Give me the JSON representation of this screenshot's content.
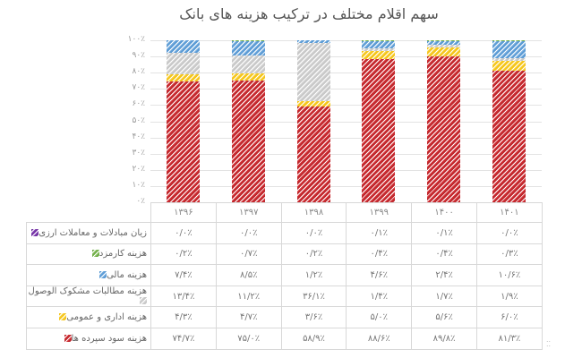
{
  "chart_data": {
    "type": "bar",
    "stacked": true,
    "percent_stacked": true,
    "title": "سهم اقلام مختلف در ترکیب هزینه های بانک",
    "xlabel": "",
    "ylabel": "",
    "ylim": [
      0,
      100
    ],
    "grid": true,
    "legend_position": "data-table",
    "y_ticks": [
      "۰٪",
      "۱۰٪",
      "۲۰٪",
      "۳۰٪",
      "۴۰٪",
      "۵۰٪",
      "۶۰٪",
      "۷۰٪",
      "۸۰٪",
      "۹۰٪",
      "۱۰۰٪"
    ],
    "categories": [
      "۱۳۹۶",
      "۱۳۹۷",
      "۱۳۹۸",
      "۱۳۹۹",
      "۱۴۰۰",
      "۱۴۰۱"
    ],
    "series": [
      {
        "name": "هزینه سود سپرده ها",
        "color": "#c0282d",
        "pattern": "p-red",
        "values": [
          74.7,
          75.0,
          58.9,
          88.6,
          89.8,
          81.3
        ],
        "labels": [
          "۷۴/۷٪",
          "۷۵/۰٪",
          "۵۸/۹٪",
          "۸۸/۶٪",
          "۸۹/۸٪",
          "۸۱/۳٪"
        ]
      },
      {
        "name": "هزینه اداری و عمومی",
        "color": "#f5c518",
        "pattern": "p-yellow",
        "values": [
          4.3,
          4.7,
          3.6,
          5.0,
          5.6,
          6.0
        ],
        "labels": [
          "۴/۳٪",
          "۴/۷٪",
          "۳/۶٪",
          "۵/۰٪",
          "۵/۶٪",
          "۶/۰٪"
        ]
      },
      {
        "name": "هزینه مطالبات مشکوک الوصول",
        "color": "#c8c8c8",
        "pattern": "p-grey",
        "values": [
          13.4,
          11.2,
          36.1,
          1.4,
          1.7,
          1.9
        ],
        "labels": [
          "۱۳/۴٪",
          "۱۱/۲٪",
          "۳۶/۱٪",
          "۱/۴٪",
          "۱/۷٪",
          "۱/۹٪"
        ]
      },
      {
        "name": "هزینه مالی",
        "color": "#5b9bd5",
        "pattern": "p-blue",
        "values": [
          7.4,
          8.5,
          1.2,
          4.6,
          2.4,
          10.6
        ],
        "labels": [
          "۷/۴٪",
          "۸/۵٪",
          "۱/۲٪",
          "۴/۶٪",
          "۲/۴٪",
          "۱۰/۶٪"
        ]
      },
      {
        "name": "هزینه کارمزد",
        "color": "#70ad47",
        "pattern": "p-green",
        "values": [
          0.2,
          0.7,
          0.2,
          0.4,
          0.4,
          0.3
        ],
        "labels": [
          "۰/۲٪",
          "۰/۷٪",
          "۰/۲٪",
          "۰/۴٪",
          "۰/۴٪",
          "۰/۳٪"
        ]
      },
      {
        "name": "زیان مبادلات و معاملات ارزی",
        "color": "#7030a0",
        "pattern": "p-purple",
        "values": [
          0.0,
          0.0,
          0.0,
          0.1,
          0.1,
          0.0
        ],
        "labels": [
          "۰/۰٪",
          "۰/۰٪",
          "۰/۰٪",
          "۰/۱٪",
          "۰/۱٪",
          "۰/۰٪"
        ]
      }
    ],
    "table_row_order": [
      5,
      4,
      3,
      2,
      1,
      0
    ]
  }
}
